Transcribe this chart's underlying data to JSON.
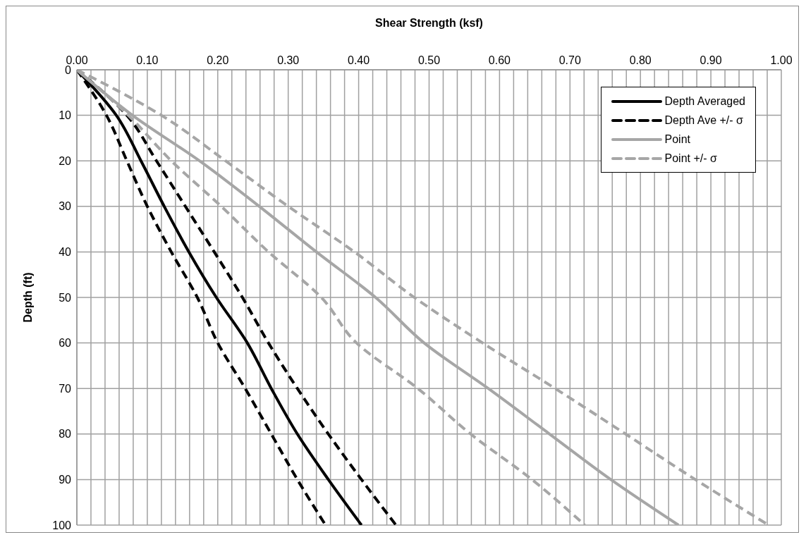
{
  "chart_data": {
    "type": "line",
    "xlabel": "Shear Strength (ksf)",
    "ylabel": "Depth (ft)",
    "xlim": [
      0,
      1
    ],
    "ylim": [
      100,
      0
    ],
    "xticks": [
      {
        "value": 0,
        "label": "0.00"
      },
      {
        "value": 0.02,
        "label": null
      },
      {
        "value": 0.04,
        "label": null
      },
      {
        "value": 0.06,
        "label": null
      },
      {
        "value": 0.08,
        "label": null
      },
      {
        "value": 0.1,
        "label": "0.10"
      },
      {
        "value": 0.12,
        "label": null
      },
      {
        "value": 0.14,
        "label": null
      },
      {
        "value": 0.16,
        "label": null
      },
      {
        "value": 0.18,
        "label": null
      },
      {
        "value": 0.2,
        "label": "0.20"
      },
      {
        "value": 0.22,
        "label": null
      },
      {
        "value": 0.24,
        "label": null
      },
      {
        "value": 0.26,
        "label": null
      },
      {
        "value": 0.28,
        "label": null
      },
      {
        "value": 0.3,
        "label": "0.30"
      },
      {
        "value": 0.32,
        "label": null
      },
      {
        "value": 0.34,
        "label": null
      },
      {
        "value": 0.36,
        "label": null
      },
      {
        "value": 0.38,
        "label": null
      },
      {
        "value": 0.4,
        "label": "0.40"
      },
      {
        "value": 0.42,
        "label": null
      },
      {
        "value": 0.44,
        "label": null
      },
      {
        "value": 0.46,
        "label": null
      },
      {
        "value": 0.48,
        "label": null
      },
      {
        "value": 0.5,
        "label": "0.50"
      },
      {
        "value": 0.52,
        "label": null
      },
      {
        "value": 0.54,
        "label": null
      },
      {
        "value": 0.56,
        "label": null
      },
      {
        "value": 0.58,
        "label": null
      },
      {
        "value": 0.6,
        "label": "0.60"
      },
      {
        "value": 0.62,
        "label": null
      },
      {
        "value": 0.64,
        "label": null
      },
      {
        "value": 0.66,
        "label": null
      },
      {
        "value": 0.68,
        "label": null
      },
      {
        "value": 0.7,
        "label": "0.70"
      },
      {
        "value": 0.72,
        "label": null
      },
      {
        "value": 0.74,
        "label": null
      },
      {
        "value": 0.76,
        "label": null
      },
      {
        "value": 0.78,
        "label": null
      },
      {
        "value": 0.8,
        "label": "0.80"
      },
      {
        "value": 0.82,
        "label": null
      },
      {
        "value": 0.84,
        "label": null
      },
      {
        "value": 0.86,
        "label": null
      },
      {
        "value": 0.88,
        "label": null
      },
      {
        "value": 0.9,
        "label": "0.90"
      },
      {
        "value": 0.92,
        "label": null
      },
      {
        "value": 0.94,
        "label": null
      },
      {
        "value": 0.96,
        "label": null
      },
      {
        "value": 0.98,
        "label": null
      },
      {
        "value": 1,
        "label": "1.00"
      }
    ],
    "yticks": [
      0,
      10,
      20,
      30,
      40,
      50,
      60,
      70,
      80,
      90,
      100
    ],
    "grid": true,
    "legend": "top right",
    "marker": "none",
    "series": [
      {
        "name": "Depth Averaged",
        "color": "#000000",
        "line_style": "solid",
        "x": [
          0,
          0.056,
          0.091,
          0.124,
          0.159,
          0.198,
          0.242,
          0.276,
          0.313,
          0.357,
          0.404
        ],
        "values": [
          0,
          10,
          20,
          30,
          40,
          50,
          60,
          70,
          80,
          90,
          100
        ]
      },
      {
        "name": "Depth Ave +/- σ",
        "color": "#000000",
        "line_style": "dashed",
        "x": [
          0,
          0.071,
          0.113,
          0.154,
          0.195,
          0.235,
          0.272,
          0.313,
          0.357,
          0.404,
          0.453
        ],
        "values": [
          0,
          10,
          20,
          30,
          40,
          50,
          60,
          70,
          80,
          90,
          100
        ]
      },
      {
        "color": "#000000",
        "line_style": "dashed",
        "x": [
          0,
          0.042,
          0.071,
          0.1,
          0.134,
          0.171,
          0.2,
          0.239,
          0.276,
          0.313,
          0.353
        ],
        "values": [
          0,
          10,
          20,
          30,
          40,
          50,
          60,
          70,
          80,
          90,
          100
        ]
      },
      {
        "name": "Point",
        "color": "#a6a6a6",
        "line_style": "solid",
        "x": [
          0,
          0.079,
          0.174,
          0.259,
          0.34,
          0.424,
          0.493,
          0.584,
          0.671,
          0.758,
          0.854
        ],
        "values": [
          0,
          10,
          20,
          30,
          40,
          50,
          60,
          70,
          80,
          90,
          100
        ]
      },
      {
        "name": "Point +/- σ",
        "color": "#a6a6a6",
        "line_style": "dashed",
        "x": [
          0,
          0.12,
          0.211,
          0.3,
          0.394,
          0.479,
          0.576,
          0.679,
          0.779,
          0.878,
          0.982
        ],
        "values": [
          0,
          10,
          20,
          30,
          40,
          50,
          60,
          70,
          80,
          90,
          100
        ]
      },
      {
        "color": "#a6a6a6",
        "line_style": "dashed",
        "x": [
          0,
          0.073,
          0.134,
          0.205,
          0.272,
          0.347,
          0.397,
          0.484,
          0.559,
          0.646,
          0.721
        ],
        "values": [
          0,
          10,
          20,
          30,
          40,
          50,
          60,
          70,
          80,
          90,
          100
        ]
      }
    ]
  }
}
